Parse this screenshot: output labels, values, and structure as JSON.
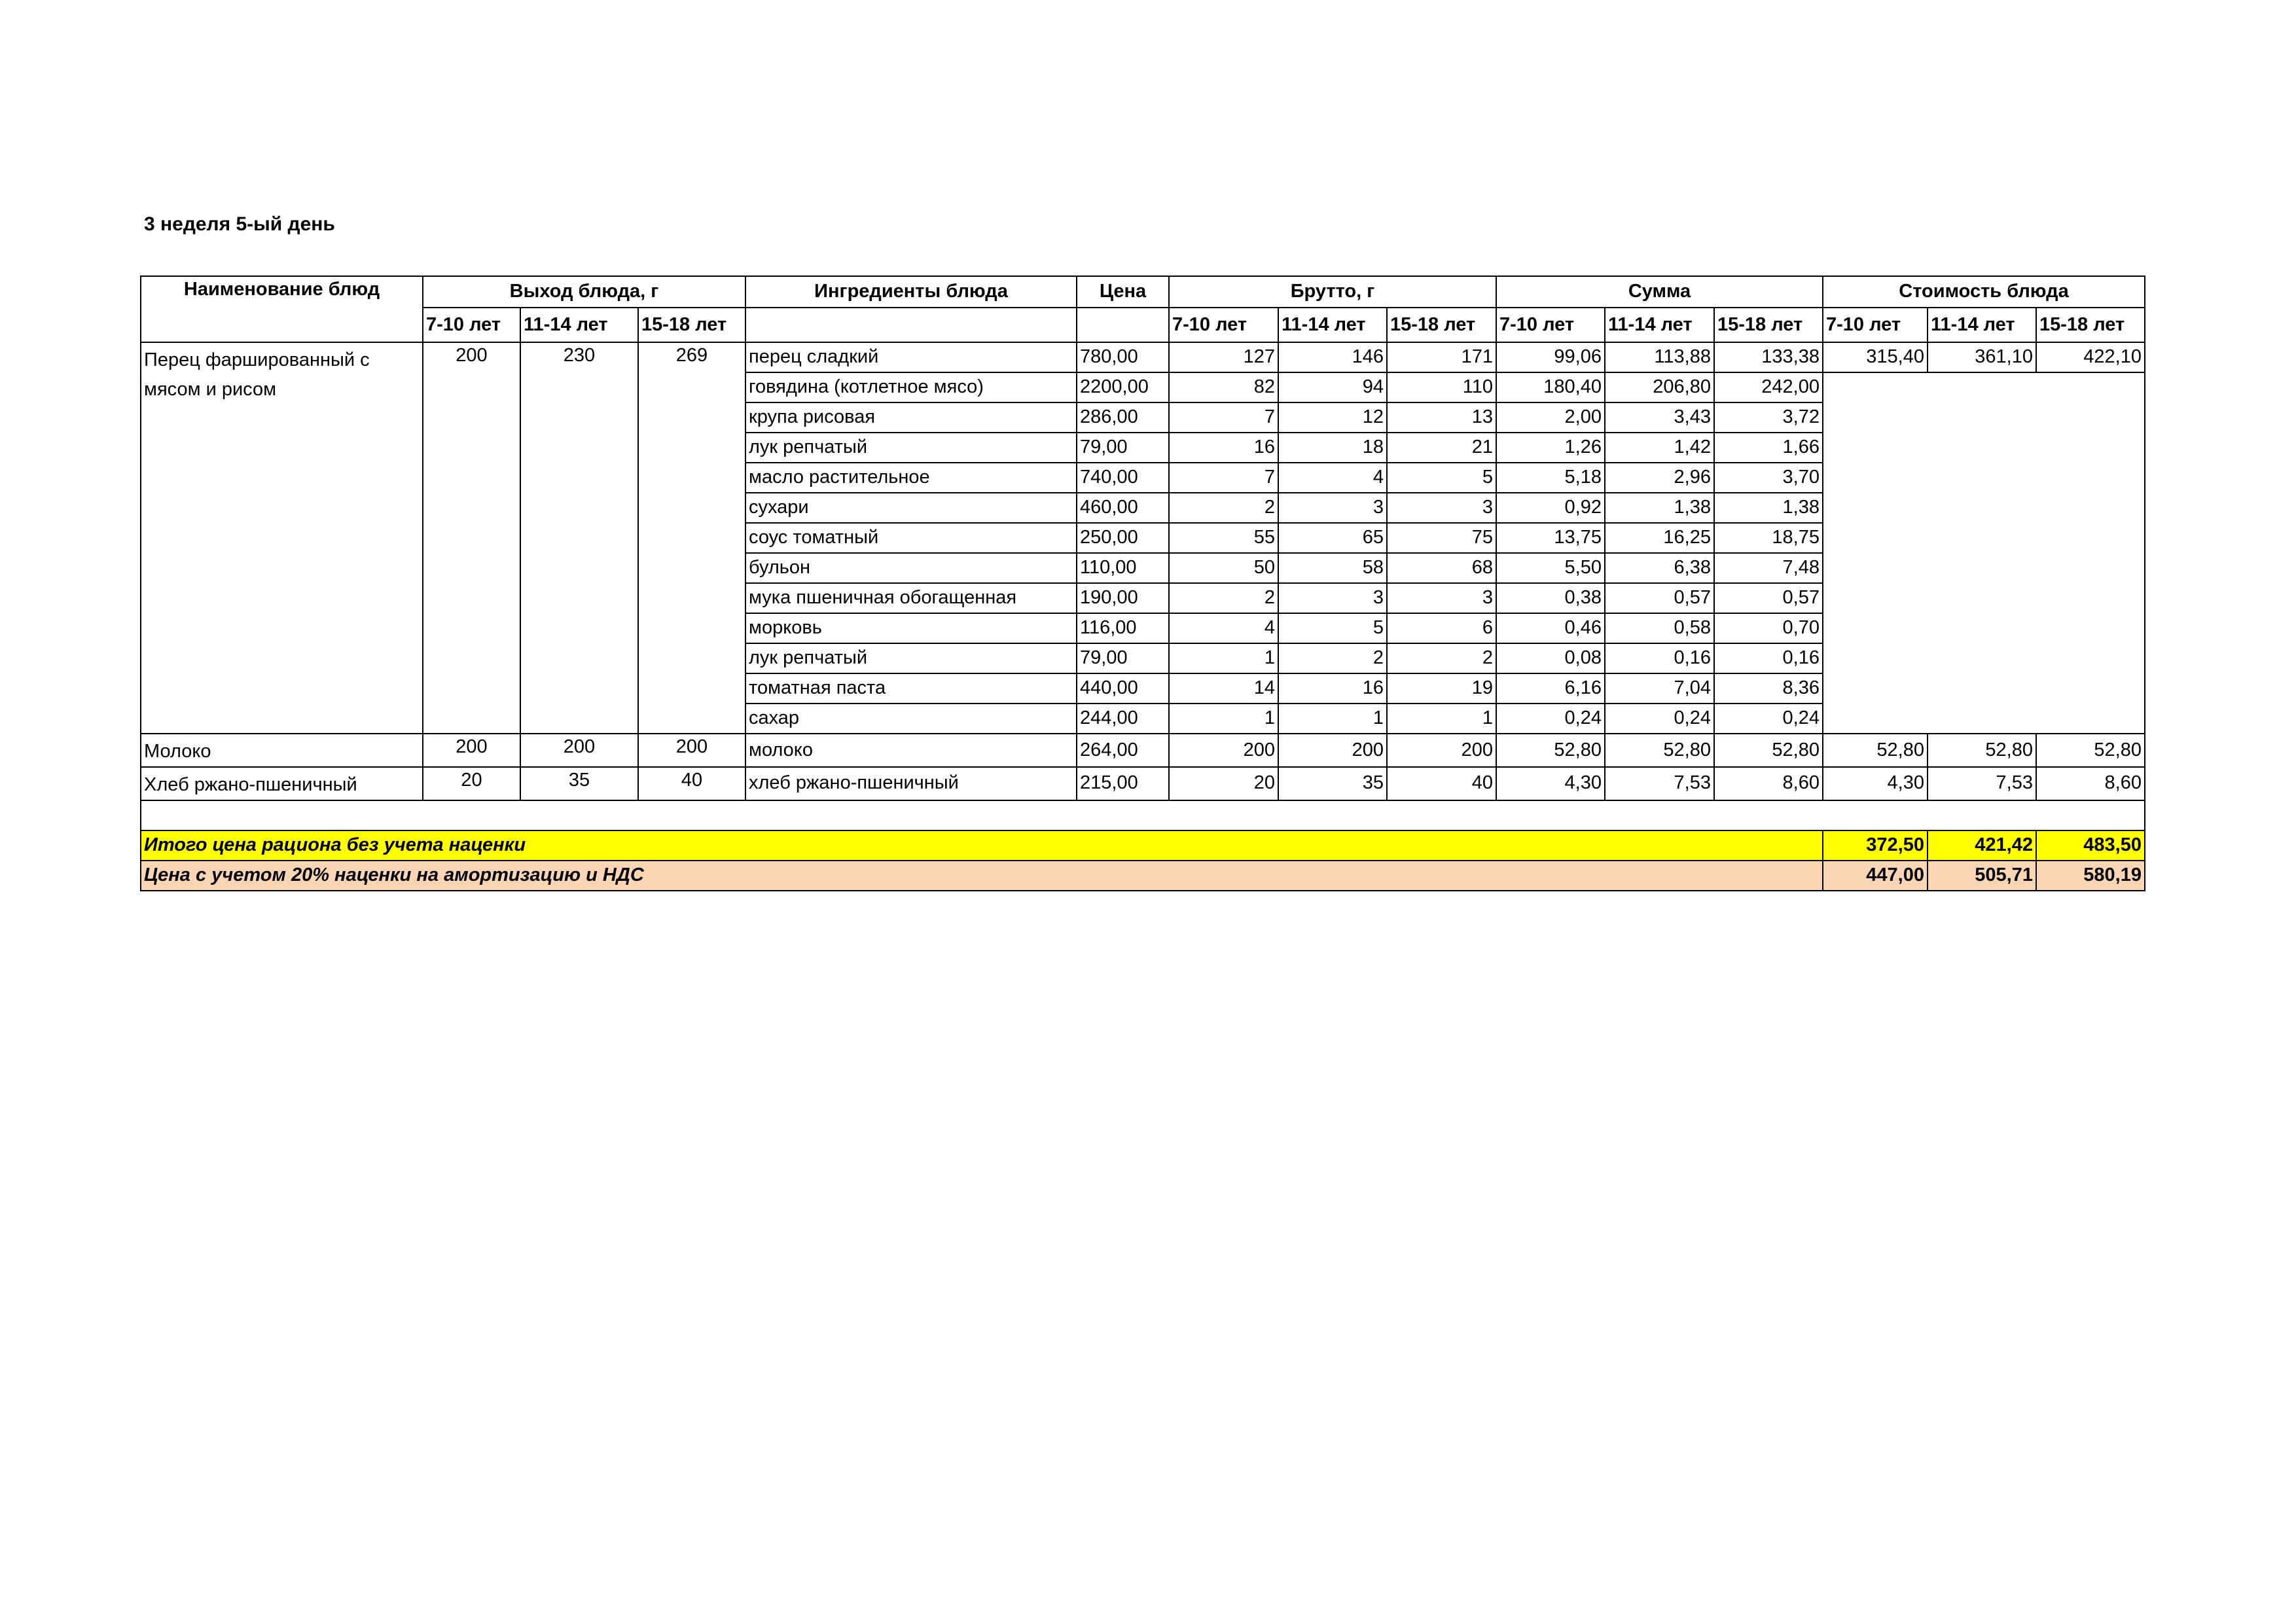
{
  "title": "3 неделя 5-ый день",
  "headers": {
    "dish": "Наименование блюд",
    "yield": "Выход блюда, г",
    "ingredients": "Ингредиенты блюда",
    "price": "Цена",
    "gross": "Брутто, г",
    "sum": "Сумма",
    "cost": "Стоимость блюда",
    "ages": [
      "7-10 лет",
      "11-14 лет",
      "15-18 лет"
    ]
  },
  "dishes": [
    {
      "name": "Перец фаршированный с мясом и рисом",
      "yield": [
        "200",
        "230",
        "269"
      ],
      "cost": [
        "315,40",
        "361,10",
        "422,10"
      ],
      "ingredients": [
        {
          "name": "перец сладкий",
          "price": "780,00",
          "gross": [
            "127",
            "146",
            "171"
          ],
          "sum": [
            "99,06",
            "113,88",
            "133,38"
          ]
        },
        {
          "name": "говядина (котлетное мясо)",
          "price": "2200,00",
          "gross": [
            "82",
            "94",
            "110"
          ],
          "sum": [
            "180,40",
            "206,80",
            "242,00"
          ]
        },
        {
          "name": "крупа рисовая",
          "price": "286,00",
          "gross": [
            "7",
            "12",
            "13"
          ],
          "sum": [
            "2,00",
            "3,43",
            "3,72"
          ]
        },
        {
          "name": "лук репчатый",
          "price": "79,00",
          "gross": [
            "16",
            "18",
            "21"
          ],
          "sum": [
            "1,26",
            "1,42",
            "1,66"
          ]
        },
        {
          "name": "масло растительное",
          "price": "740,00",
          "gross": [
            "7",
            "4",
            "5"
          ],
          "sum": [
            "5,18",
            "2,96",
            "3,70"
          ]
        },
        {
          "name": "сухари",
          "price": "460,00",
          "gross": [
            "2",
            "3",
            "3"
          ],
          "sum": [
            "0,92",
            "1,38",
            "1,38"
          ]
        },
        {
          "name": "соус томатный",
          "price": "250,00",
          "gross": [
            "55",
            "65",
            "75"
          ],
          "sum": [
            "13,75",
            "16,25",
            "18,75"
          ]
        },
        {
          "name": "бульон",
          "price": "110,00",
          "gross": [
            "50",
            "58",
            "68"
          ],
          "sum": [
            "5,50",
            "6,38",
            "7,48"
          ]
        },
        {
          "name": "мука пшеничная обогащенная",
          "price": "190,00",
          "gross": [
            "2",
            "3",
            "3"
          ],
          "sum": [
            "0,38",
            "0,57",
            "0,57"
          ]
        },
        {
          "name": "морковь",
          "price": "116,00",
          "gross": [
            "4",
            "5",
            "6"
          ],
          "sum": [
            "0,46",
            "0,58",
            "0,70"
          ]
        },
        {
          "name": "лук репчатый",
          "price": "79,00",
          "gross": [
            "1",
            "2",
            "2"
          ],
          "sum": [
            "0,08",
            "0,16",
            "0,16"
          ]
        },
        {
          "name": "томатная паста",
          "price": "440,00",
          "gross": [
            "14",
            "16",
            "19"
          ],
          "sum": [
            "6,16",
            "7,04",
            "8,36"
          ]
        },
        {
          "name": "сахар",
          "price": "244,00",
          "gross": [
            "1",
            "1",
            "1"
          ],
          "sum": [
            "0,24",
            "0,24",
            "0,24"
          ]
        }
      ]
    },
    {
      "name": "Молоко",
      "yield": [
        "200",
        "200",
        "200"
      ],
      "cost": [
        "52,80",
        "52,80",
        "52,80"
      ],
      "ingredients": [
        {
          "name": "молоко",
          "price": "264,00",
          "gross": [
            "200",
            "200",
            "200"
          ],
          "sum": [
            "52,80",
            "52,80",
            "52,80"
          ]
        }
      ]
    },
    {
      "name": "Хлеб ржано-пшеничный",
      "yield": [
        "20",
        "35",
        "40"
      ],
      "cost": [
        "4,30",
        "7,53",
        "8,60"
      ],
      "ingredients": [
        {
          "name": "хлеб ржано-пшеничный",
          "price": "215,00",
          "gross": [
            "20",
            "35",
            "40"
          ],
          "sum": [
            "4,30",
            "7,53",
            "8,60"
          ]
        }
      ]
    }
  ],
  "totals": [
    {
      "label": "Итого цена рациона без учета наценки",
      "values": [
        "372,50",
        "421,42",
        "483,50"
      ],
      "color": "#ffff00"
    },
    {
      "label": "Цена с учетом 20% наценки на амортизацию и НДС",
      "values": [
        "447,00",
        "505,71",
        "580,19"
      ],
      "color": "#fcd5b4"
    }
  ]
}
